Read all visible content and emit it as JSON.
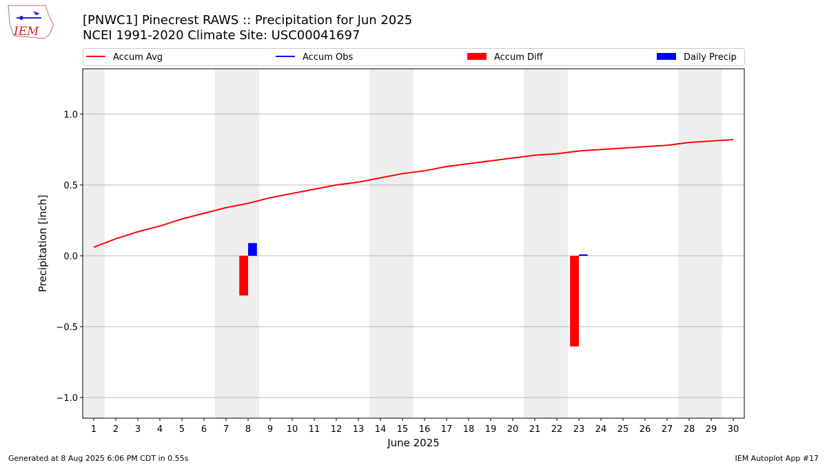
{
  "logo_text": "IEM",
  "footer_left": "Generated at 8 Aug 2025 6:06 PM CDT in 0.55s",
  "footer_right": "IEM Autoplot App #17",
  "chart_data": {
    "type": "bar-line",
    "title": "[PNWC1] Pinecrest RAWS :: Precipitation for Jun 2025",
    "subtitle": "NCEI 1991-2020 Climate Site: USC00041697",
    "xlabel": "June 2025",
    "ylabel": "Precipitation [inch]",
    "x": [
      1,
      2,
      3,
      4,
      5,
      6,
      7,
      8,
      9,
      10,
      11,
      12,
      13,
      14,
      15,
      16,
      17,
      18,
      19,
      20,
      21,
      22,
      23,
      24,
      25,
      26,
      27,
      28,
      29,
      30
    ],
    "xlim": [
      0.5,
      30.5
    ],
    "xticks": [
      1,
      2,
      3,
      4,
      5,
      6,
      7,
      8,
      9,
      10,
      11,
      12,
      13,
      14,
      15,
      16,
      17,
      18,
      19,
      20,
      21,
      22,
      23,
      24,
      25,
      26,
      27,
      28,
      29,
      30
    ],
    "ylim": [
      -1.146,
      1.32
    ],
    "yticks": [
      {
        "value": -1.0,
        "label": "−1.0"
      },
      {
        "value": -0.5,
        "label": "−0.5"
      },
      {
        "value": 0,
        "label": "0.0"
      },
      0.5,
      {
        "value": 1.0,
        "label": "1.0"
      }
    ],
    "grid": true,
    "series": [
      {
        "name": "Accum Avg",
        "kind": "line",
        "color": "#ff0000",
        "values": [
          0.06,
          0.12,
          0.17,
          0.21,
          0.26,
          0.3,
          0.34,
          0.37,
          0.41,
          0.44,
          0.47,
          0.5,
          0.52,
          0.55,
          0.58,
          0.6,
          0.63,
          0.65,
          0.67,
          0.69,
          0.71,
          0.72,
          0.74,
          0.75,
          0.76,
          0.77,
          0.78,
          0.8,
          0.81,
          0.82
        ]
      },
      {
        "name": "Accum Obs",
        "kind": "line",
        "color": "#0000ff",
        "values": [
          null,
          null,
          null,
          null,
          null,
          null,
          null,
          null,
          null,
          null,
          null,
          null,
          null,
          null,
          null,
          null,
          null,
          null,
          null,
          null,
          null,
          null,
          null,
          null,
          null,
          null,
          null,
          null,
          null,
          null
        ]
      },
      {
        "name": "Accum Diff",
        "kind": "bar",
        "color": "#ff0000",
        "values": [
          null,
          null,
          null,
          null,
          null,
          null,
          null,
          -0.28,
          null,
          null,
          null,
          null,
          null,
          null,
          null,
          null,
          null,
          null,
          null,
          null,
          null,
          null,
          -0.64,
          null,
          null,
          null,
          null,
          null,
          null,
          null
        ]
      },
      {
        "name": "Daily Precip",
        "kind": "bar",
        "color": "#0000ff",
        "values": [
          null,
          null,
          null,
          null,
          null,
          null,
          null,
          0.09,
          null,
          null,
          null,
          null,
          null,
          null,
          null,
          null,
          null,
          null,
          null,
          null,
          null,
          null,
          0.01,
          null,
          null,
          null,
          null,
          null,
          null,
          null
        ]
      }
    ]
  }
}
